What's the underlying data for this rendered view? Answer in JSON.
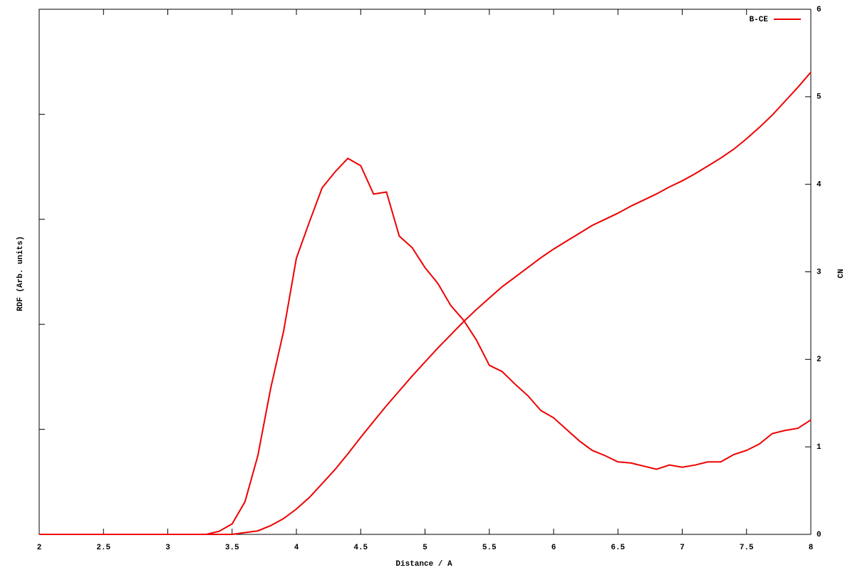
{
  "chart_data": {
    "type": "line",
    "xlabel": "Distance / A",
    "ylabel": "RDF (Arb. units)",
    "y2label": "CN",
    "x": [
      2.0,
      2.1,
      2.2,
      2.3,
      2.4,
      2.5,
      2.6,
      2.7,
      2.8,
      2.9,
      3.0,
      3.1,
      3.2,
      3.3,
      3.4,
      3.5,
      3.6,
      3.7,
      3.8,
      3.9,
      4.0,
      4.1,
      4.2,
      4.3,
      4.4,
      4.5,
      4.6,
      4.7,
      4.8,
      4.9,
      5.0,
      5.1,
      5.2,
      5.3,
      5.4,
      5.5,
      5.6,
      5.7,
      5.8,
      5.9,
      6.0,
      6.1,
      6.2,
      6.3,
      6.4,
      6.5,
      6.6,
      6.7,
      6.8,
      6.9,
      7.0,
      7.1,
      7.2,
      7.3,
      7.4,
      7.5,
      7.6,
      7.7,
      7.8,
      7.9,
      8.0
    ],
    "series": [
      {
        "name": "B-CE",
        "color": "#ee0000",
        "values": [
          0,
          0,
          0,
          0,
          0,
          0,
          0,
          0,
          0,
          0,
          0,
          0,
          0,
          0,
          0.03,
          0.1,
          0.31,
          0.75,
          1.39,
          1.93,
          2.63,
          2.97,
          3.3,
          3.45,
          3.58,
          3.51,
          3.24,
          3.26,
          2.84,
          2.73,
          2.54,
          2.39,
          2.18,
          2.04,
          1.85,
          1.61,
          1.55,
          1.43,
          1.32,
          1.18,
          1.11,
          1.0,
          0.89,
          0.8,
          0.75,
          0.69,
          0.68,
          0.65,
          0.62,
          0.66,
          0.64,
          0.66,
          0.69,
          0.69,
          0.76,
          0.8,
          0.86,
          0.96,
          0.99,
          1.01,
          1.09
        ]
      },
      {
        "color": "#ee0000",
        "axis": "y2",
        "values": [
          0,
          0,
          0,
          0,
          0,
          0,
          0,
          0,
          0,
          0,
          0,
          0,
          0,
          0,
          0,
          0,
          0.02,
          0.04,
          0.1,
          0.18,
          0.29,
          0.42,
          0.58,
          0.74,
          0.92,
          1.11,
          1.29,
          1.47,
          1.64,
          1.81,
          1.97,
          2.13,
          2.28,
          2.43,
          2.57,
          2.7,
          2.83,
          2.94,
          3.05,
          3.16,
          3.26,
          3.35,
          3.44,
          3.53,
          3.6,
          3.67,
          3.75,
          3.82,
          3.89,
          3.97,
          4.04,
          4.12,
          4.21,
          4.3,
          4.4,
          4.52,
          4.65,
          4.79,
          4.95,
          5.11,
          5.28
        ]
      }
    ],
    "xlim": [
      2,
      8
    ],
    "xticks": [
      2,
      2.5,
      3,
      3.5,
      4,
      4.5,
      5,
      5.5,
      6,
      6.5,
      7,
      7.5,
      8
    ],
    "ylim": [
      0,
      5
    ],
    "yticks": [
      0,
      1,
      2,
      3,
      4,
      5
    ],
    "y2lim": [
      0,
      6
    ],
    "y2ticks": [
      0,
      1,
      2,
      3,
      4,
      5,
      6
    ],
    "legend": "top-right"
  }
}
